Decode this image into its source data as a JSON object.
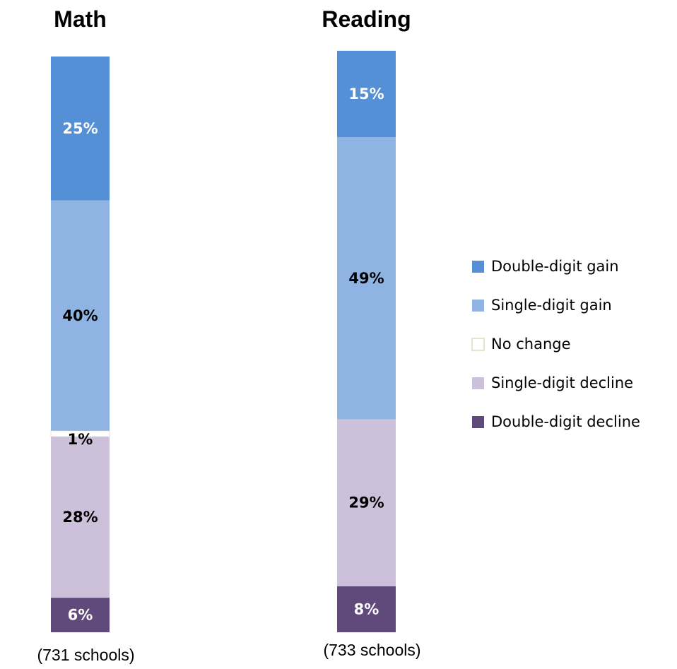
{
  "chart_data": {
    "type": "bar",
    "stacked": true,
    "categories_order": [
      "Double-digit decline",
      "Single-digit decline",
      "No change",
      "Single-digit gain",
      "Double-digit gain"
    ],
    "legend_order": [
      "Double-digit gain",
      "Single-digit gain",
      "No change",
      "Single-digit decline",
      "Double-digit decline"
    ],
    "legend_position": "right",
    "colors": {
      "Double-digit gain": "#5590d6",
      "Single-digit gain": "#8fb4e3",
      "No change": "#ffffff",
      "Single-digit decline": "#ccc0da",
      "Double-digit decline": "#604a7b"
    },
    "label_colors": {
      "Double-digit gain": "#ffffff",
      "Single-digit gain": "#000000",
      "No change": "#000000",
      "Single-digit decline": "#000000",
      "Double-digit decline": "#ffffff"
    },
    "panels": [
      {
        "title": "Math",
        "subtitle": "(731 schools)",
        "values": {
          "Double-digit decline": 6,
          "Single-digit decline": 28,
          "No change": 1,
          "Single-digit gain": 40,
          "Double-digit gain": 25
        },
        "labels": {
          "Double-digit decline": "6%",
          "Single-digit decline": "28%",
          "No change": "1%",
          "Single-digit gain": "40%",
          "Double-digit gain": "25%"
        }
      },
      {
        "title": "Reading",
        "subtitle": "(733 schools)",
        "values": {
          "Double-digit decline": 8,
          "Single-digit decline": 29,
          "No change": 0,
          "Single-digit gain": 49,
          "Double-digit gain": 15
        },
        "labels": {
          "Double-digit decline": "8%",
          "Single-digit decline": "29%",
          "No change": "0%",
          "Single-digit gain": "49%",
          "Double-digit gain": "15%"
        }
      }
    ],
    "ylim": [
      0,
      100
    ],
    "grid": false
  }
}
